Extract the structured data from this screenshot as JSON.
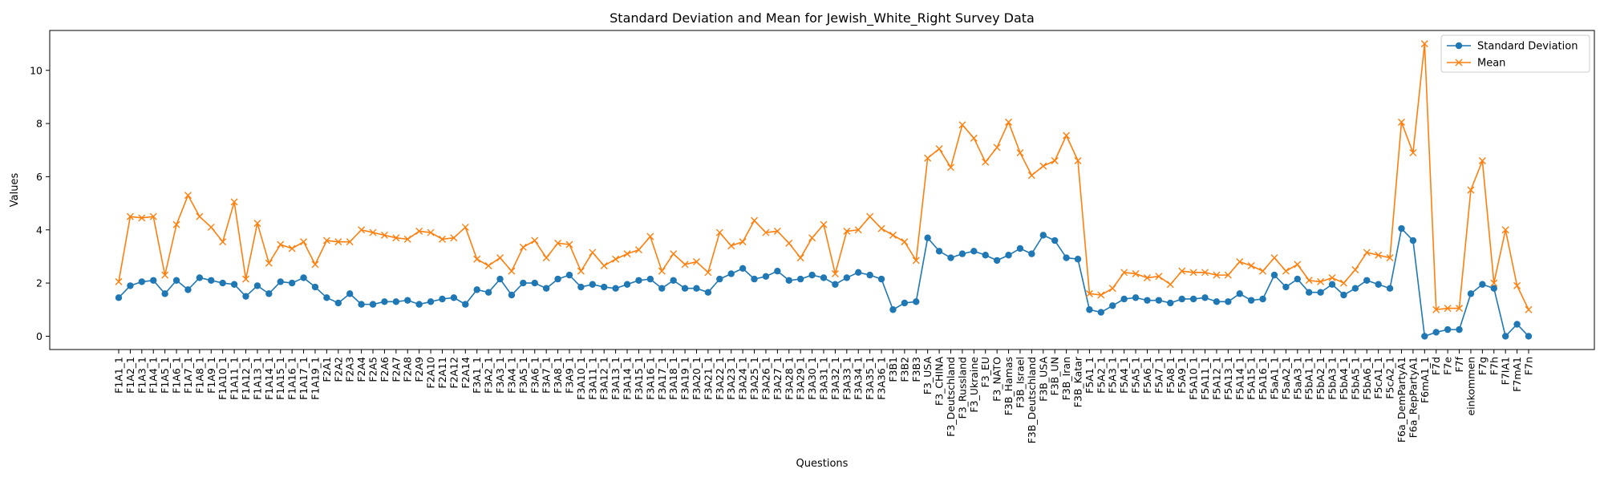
{
  "chart_data": {
    "type": "line",
    "title": "Standard Deviation and Mean for Jewish_White_Right Survey Data",
    "xlabel": "Questions",
    "ylabel": "Values",
    "ylim": [
      -0.5,
      11.5
    ],
    "yticks": [
      0,
      2,
      4,
      6,
      8,
      10
    ],
    "grid": false,
    "legend_position": "top-right",
    "categories": [
      "F1A1_1",
      "F1A2_1",
      "F1A3_1",
      "F1A4_1",
      "F1A5_1",
      "F1A6_1",
      "F1A7_1",
      "F1A8_1",
      "F1A9_1",
      "F1A10_1",
      "F1A11_1",
      "F1A12_1",
      "F1A13_1",
      "F1A14_1",
      "F1A15_1",
      "F1A16_1",
      "F1A17_1",
      "F1A19_1",
      "F2A1",
      "F2A2",
      "F2A3",
      "F2A4",
      "F2A5",
      "F2A6",
      "F2A7",
      "F2A8",
      "F2A9",
      "F2A10",
      "F2A11",
      "F2A12",
      "F2A14",
      "F3A1_1",
      "F3A2_1",
      "F3A3_1",
      "F3A4_1",
      "F3A5_1",
      "F3A6_1",
      "F3A7_1",
      "F3A8_1",
      "F3A9_1",
      "F3A10_1",
      "F3A11_1",
      "F3A12_1",
      "F3A13_1",
      "F3A14_1",
      "F3A15_1",
      "F3A16_1",
      "F3A17_1",
      "F3A18_1",
      "F3A19_1",
      "F3A20_1",
      "F3A21_1",
      "F3A22_1",
      "F3A23_1",
      "F3A24_1",
      "F3A25_1",
      "F3A26_1",
      "F3A27_1",
      "F3A28_1",
      "F3A29_1",
      "F3A30_1",
      "F3A31_1",
      "F3A32_1",
      "F3A33_1",
      "F3A34_1",
      "F3A35_1",
      "F3A36_1",
      "F3B1",
      "F3B2",
      "F3B3",
      "F3_USA",
      "F3_CHINA",
      "F3_Deutschland",
      "F3_Russland",
      "F3_Ukraine",
      "F3_EU",
      "F3_NATO",
      "F3B_Hamas",
      "F3B_Israel",
      "F3B_Deutschland",
      "F3B_USA",
      "F3B_UN",
      "F3B_Iran",
      "F3B_Katar",
      "F5A1_1",
      "F5A2_1",
      "F5A3_1",
      "F5A4_1",
      "F5A5_1",
      "F5A6_1",
      "F5A7_1",
      "F5A8_1",
      "F5A9_1",
      "F5A10_1",
      "F5A11_1",
      "F5A12_1",
      "F5A13_1",
      "F5A14_1",
      "F5A15_1",
      "F5A16_1",
      "F5aA1_1",
      "F5aA2_1",
      "F5aA3_1",
      "F5bA1_1",
      "F5bA2_1",
      "F5bA3_1",
      "F5bA4_1",
      "F5bA5_1",
      "F5bA6_1",
      "F5cA1_1",
      "F5cA2_1",
      "F6a_DemPartyA1",
      "F6a_RepPartyA1",
      "F6mA1_1",
      "F7d",
      "F7e",
      "F7f",
      "einkommen",
      "F7g",
      "F7h",
      "F7IA1",
      "F7mA1",
      "F7n"
    ],
    "series": [
      {
        "name": "Standard Deviation",
        "color": "#1f77b4",
        "marker": "circle",
        "values": [
          1.45,
          1.9,
          2.05,
          2.1,
          1.6,
          2.1,
          1.75,
          2.2,
          2.1,
          2.0,
          1.95,
          1.5,
          1.9,
          1.6,
          2.05,
          2.0,
          2.2,
          1.85,
          1.45,
          1.25,
          1.6,
          1.2,
          1.2,
          1.3,
          1.3,
          1.35,
          1.2,
          1.3,
          1.4,
          1.45,
          1.2,
          1.75,
          1.65,
          2.15,
          1.55,
          2.0,
          2.0,
          1.8,
          2.15,
          2.3,
          1.85,
          1.95,
          1.85,
          1.8,
          1.95,
          2.1,
          2.15,
          1.8,
          2.1,
          1.8,
          1.8,
          1.65,
          2.15,
          2.35,
          2.55,
          2.15,
          2.25,
          2.45,
          2.1,
          2.15,
          2.3,
          2.2,
          1.95,
          2.2,
          2.4,
          2.3,
          2.15,
          1.0,
          1.25,
          1.3,
          3.7,
          3.2,
          2.95,
          3.1,
          3.2,
          3.05,
          2.85,
          3.05,
          3.3,
          3.1,
          3.8,
          3.6,
          2.95,
          2.9,
          1.0,
          0.9,
          1.15,
          1.4,
          1.45,
          1.35,
          1.35,
          1.25,
          1.4,
          1.4,
          1.45,
          1.3,
          1.3,
          1.6,
          1.35,
          1.4,
          2.3,
          1.85,
          2.15,
          1.65,
          1.65,
          1.95,
          1.55,
          1.8,
          2.1,
          1.95,
          1.8,
          4.05,
          3.6,
          0.0,
          0.15,
          0.25,
          0.25,
          1.6,
          1.95,
          1.8,
          0.0,
          0.45,
          0.0
        ]
      },
      {
        "name": "Mean",
        "color": "#ff7f0e",
        "marker": "x",
        "values": [
          2.05,
          4.5,
          4.45,
          4.5,
          2.3,
          4.2,
          5.3,
          4.5,
          4.1,
          3.55,
          5.05,
          2.15,
          4.25,
          2.75,
          3.45,
          3.3,
          3.55,
          2.7,
          3.6,
          3.55,
          3.55,
          4.0,
          3.9,
          3.8,
          3.7,
          3.65,
          3.95,
          3.9,
          3.65,
          3.7,
          4.1,
          2.9,
          2.65,
          2.95,
          2.45,
          3.35,
          3.6,
          2.95,
          3.5,
          3.45,
          2.45,
          3.15,
          2.65,
          2.9,
          3.1,
          3.25,
          3.75,
          2.45,
          3.1,
          2.7,
          2.8,
          2.4,
          3.9,
          3.4,
          3.55,
          4.35,
          3.9,
          3.95,
          3.5,
          2.95,
          3.7,
          4.2,
          2.35,
          3.95,
          4.0,
          4.5,
          4.05,
          3.8,
          3.55,
          2.85,
          6.7,
          7.05,
          6.35,
          7.95,
          7.45,
          6.55,
          7.1,
          8.05,
          6.9,
          6.05,
          6.4,
          6.6,
          7.55,
          6.6,
          1.6,
          1.55,
          1.8,
          2.4,
          2.35,
          2.2,
          2.25,
          1.95,
          2.45,
          2.4,
          2.4,
          2.3,
          2.3,
          2.8,
          2.65,
          2.45,
          2.95,
          2.45,
          2.7,
          2.1,
          2.05,
          2.2,
          2.0,
          2.5,
          3.15,
          3.05,
          2.95,
          8.05,
          6.9,
          11.0,
          1.0,
          1.05,
          1.05,
          5.5,
          6.6,
          2.0,
          4.0,
          1.9,
          1.0
        ]
      }
    ]
  }
}
